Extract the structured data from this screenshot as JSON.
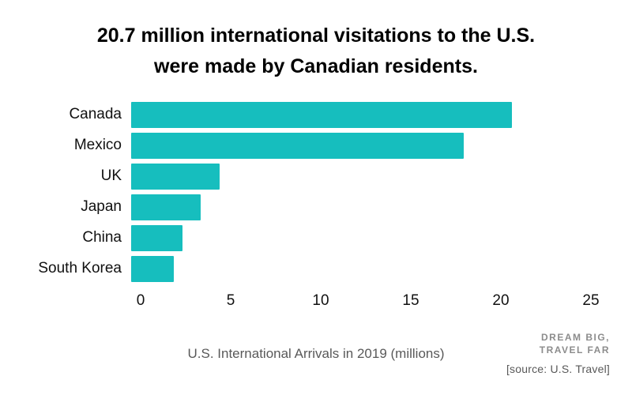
{
  "chart_data": {
    "type": "bar",
    "orientation": "horizontal",
    "title": "20.7 million international visitations to the U.S. were made by Canadian residents.",
    "title_lines": [
      "20.7 million international visitations to the U.S.",
      "were made by Canadian residents."
    ],
    "categories": [
      "Canada",
      "Mexico",
      "UK",
      "Japan",
      "China",
      "South Korea"
    ],
    "values": [
      20.7,
      18.1,
      4.8,
      3.8,
      2.8,
      2.3
    ],
    "xlabel": "U.S. International Arrivals in 2019 (millions)",
    "ylabel": "",
    "xlim": [
      0,
      25
    ],
    "x_ticks": [
      0,
      5,
      10,
      15,
      20,
      25
    ],
    "grid": false,
    "legend": false,
    "bar_color": "#16bebe"
  },
  "footer": {
    "logo_line1": "DREAM BIG,",
    "logo_line2": "TRAVEL FAR",
    "source": "[source: U.S. Travel]"
  }
}
